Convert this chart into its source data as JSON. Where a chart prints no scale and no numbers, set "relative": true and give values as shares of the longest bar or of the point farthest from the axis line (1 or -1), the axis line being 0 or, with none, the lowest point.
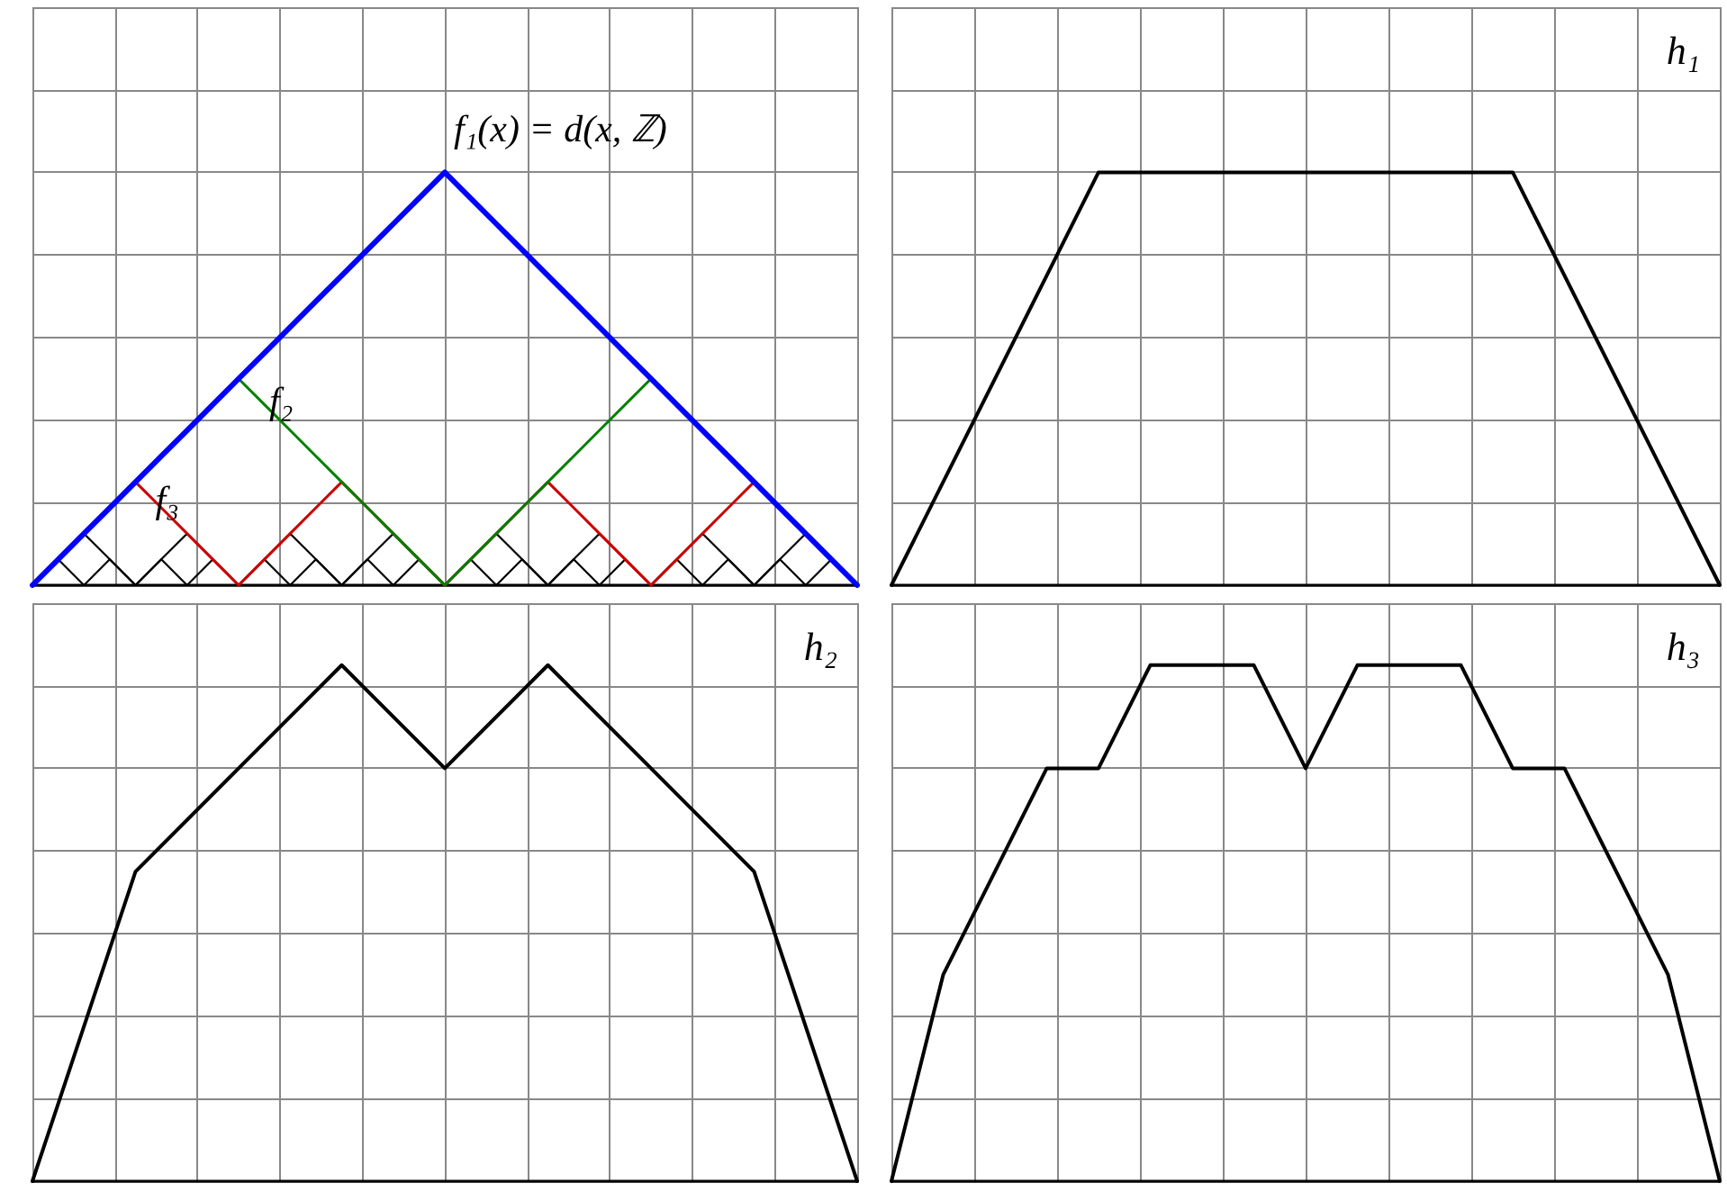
{
  "chart_data": [
    {
      "type": "line",
      "relative": true,
      "categories": [
        null,
        null,
        null,
        null,
        null,
        null,
        null,
        null,
        null,
        null,
        null,
        null,
        null,
        null,
        null,
        null,
        null,
        null,
        null,
        null,
        null,
        null,
        null,
        null,
        null,
        null,
        null,
        null,
        null,
        null,
        null,
        null,
        null
      ],
      "grid": true,
      "tick_labels": false,
      "marker": "none",
      "line_style": "solid",
      "series": [
        {
          "name": "f₁(x) = d(x, ℤ)",
          "color": "#0000ff",
          "values": [
            0,
            0.0625,
            0.125,
            0.1875,
            0.25,
            0.3125,
            0.375,
            0.4375,
            0.5,
            0.5625,
            0.625,
            0.6875,
            0.75,
            0.8125,
            0.875,
            0.9375,
            1,
            0.9375,
            0.875,
            0.8125,
            0.75,
            0.6875,
            0.625,
            0.5625,
            0.5,
            0.4375,
            0.375,
            0.3125,
            0.25,
            0.1875,
            0.125,
            0.0625,
            0
          ]
        },
        {
          "name": "f₂",
          "color": "#008000",
          "values": [
            null,
            null,
            null,
            null,
            null,
            null,
            null,
            null,
            0.5,
            0.4375,
            0.375,
            0.3125,
            0.25,
            0.1875,
            0.125,
            0.0625,
            0,
            0.0625,
            0.125,
            0.1875,
            0.25,
            0.3125,
            0.375,
            0.4375,
            0.5,
            null,
            null,
            null,
            null,
            null,
            null,
            null,
            null
          ]
        },
        {
          "name": "f₃",
          "color": "#cc0000",
          "values": [
            null,
            null,
            null,
            null,
            0.25,
            0.1875,
            0.125,
            0.0625,
            0,
            0.0625,
            0.125,
            0.1875,
            0.25,
            0.1875,
            0.125,
            0.0625,
            0,
            0.0625,
            0.125,
            0.1875,
            0.25,
            0.1875,
            0.125,
            0.0625,
            0,
            0.0625,
            0.125,
            0.1875,
            0.25,
            null,
            null,
            null,
            null
          ]
        },
        {
          "color": "#000000",
          "values": [
            0,
            0.0625,
            0.125,
            0.0625,
            0,
            0.0625,
            0.125,
            0.0625,
            0,
            0.0625,
            0.125,
            0.0625,
            0,
            0.0625,
            0.125,
            0.0625,
            0,
            0.0625,
            0.125,
            0.0625,
            0,
            0.0625,
            0.125,
            0.0625,
            0,
            0.0625,
            0.125,
            0.0625,
            0,
            0.0625,
            0.125,
            0.0625,
            0
          ]
        },
        {
          "color": "#000000",
          "values": [
            0,
            0.0625,
            0,
            0.0625,
            0,
            0.0625,
            0,
            0.0625,
            0,
            0.0625,
            0,
            0.0625,
            0,
            0.0625,
            0,
            0.0625,
            0,
            0.0625,
            0,
            0.0625,
            0,
            0.0625,
            0,
            0.0625,
            0,
            0.0625,
            0,
            0.0625,
            0,
            0.0625,
            0,
            0.0625,
            0
          ]
        }
      ]
    },
    {
      "type": "line",
      "relative": true,
      "title": "h₁",
      "categories": [
        null,
        null,
        null,
        null,
        null
      ],
      "grid": true,
      "tick_labels": false,
      "marker": "none",
      "line_style": "solid",
      "series": [
        {
          "color": "#000000",
          "values": [
            0,
            1,
            1,
            1,
            0
          ]
        }
      ]
    },
    {
      "type": "line",
      "relative": true,
      "title": "h₂",
      "categories": [
        null,
        null,
        null,
        null,
        null,
        null,
        null,
        null,
        null
      ],
      "grid": true,
      "tick_labels": false,
      "marker": "none",
      "line_style": "solid",
      "series": [
        {
          "color": "#000000",
          "values": [
            0,
            0.6,
            0.8,
            1,
            0.8,
            1,
            0.8,
            0.6,
            0
          ]
        }
      ]
    },
    {
      "type": "line",
      "relative": true,
      "title": "h₃",
      "categories": [
        null,
        null,
        null,
        null,
        null,
        null,
        null,
        null,
        null,
        null,
        null,
        null,
        null,
        null,
        null,
        null,
        null
      ],
      "grid": true,
      "tick_labels": false,
      "marker": "none",
      "line_style": "solid",
      "series": [
        {
          "color": "#000000",
          "values": [
            0,
            0.4,
            0.6,
            0.8,
            0.8,
            1,
            1,
            1,
            0.8,
            1,
            1,
            1,
            0.8,
            0.8,
            0.6,
            0.4,
            0
          ]
        }
      ]
    }
  ]
}
